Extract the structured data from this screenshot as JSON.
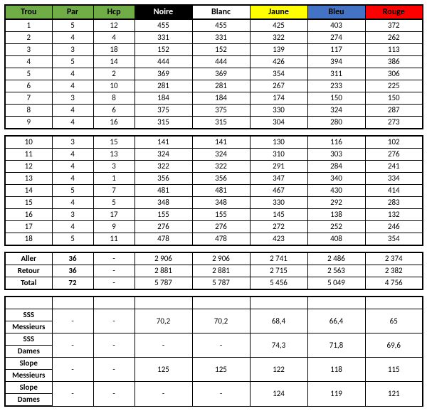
{
  "headers": {
    "trou": {
      "label": "Trou",
      "bg": "#70ad47",
      "fg": "#000000"
    },
    "par": {
      "label": "Par",
      "bg": "#70ad47",
      "fg": "#000000"
    },
    "hcp": {
      "label": "Hcp",
      "bg": "#70ad47",
      "fg": "#000000"
    },
    "noire": {
      "label": "Noire",
      "bg": "#000000",
      "fg": "#ffffff"
    },
    "blanc": {
      "label": "Blanc",
      "bg": "#ffffff",
      "fg": "#000000"
    },
    "jaune": {
      "label": "Jaune",
      "bg": "#ffff00",
      "fg": "#000000"
    },
    "bleu": {
      "label": "Bleu",
      "bg": "#4472c4",
      "fg": "#000000"
    },
    "rouge": {
      "label": "Rouge",
      "bg": "#ff0000",
      "fg": "#000000"
    }
  },
  "front9": [
    {
      "trou": "1",
      "par": "5",
      "hcp": "12",
      "noire": "455",
      "blanc": "455",
      "jaune": "425",
      "bleu": "403",
      "rouge": "372"
    },
    {
      "trou": "2",
      "par": "4",
      "hcp": "4",
      "noire": "331",
      "blanc": "331",
      "jaune": "322",
      "bleu": "274",
      "rouge": "262"
    },
    {
      "trou": "3",
      "par": "3",
      "hcp": "18",
      "noire": "152",
      "blanc": "152",
      "jaune": "139",
      "bleu": "117",
      "rouge": "113"
    },
    {
      "trou": "4",
      "par": "5",
      "hcp": "14",
      "noire": "444",
      "blanc": "444",
      "jaune": "426",
      "bleu": "394",
      "rouge": "386"
    },
    {
      "trou": "5",
      "par": "4",
      "hcp": "2",
      "noire": "369",
      "blanc": "369",
      "jaune": "354",
      "bleu": "311",
      "rouge": "306"
    },
    {
      "trou": "6",
      "par": "4",
      "hcp": "10",
      "noire": "281",
      "blanc": "281",
      "jaune": "267",
      "bleu": "233",
      "rouge": "225"
    },
    {
      "trou": "7",
      "par": "3",
      "hcp": "8",
      "noire": "184",
      "blanc": "184",
      "jaune": "174",
      "bleu": "150",
      "rouge": "150"
    },
    {
      "trou": "8",
      "par": "4",
      "hcp": "6",
      "noire": "375",
      "blanc": "375",
      "jaune": "330",
      "bleu": "324",
      "rouge": "287"
    },
    {
      "trou": "9",
      "par": "4",
      "hcp": "16",
      "noire": "315",
      "blanc": "315",
      "jaune": "304",
      "bleu": "280",
      "rouge": "273"
    }
  ],
  "back9": [
    {
      "trou": "10",
      "par": "3",
      "hcp": "15",
      "noire": "141",
      "blanc": "141",
      "jaune": "130",
      "bleu": "116",
      "rouge": "102"
    },
    {
      "trou": "11",
      "par": "4",
      "hcp": "13",
      "noire": "324",
      "blanc": "324",
      "jaune": "310",
      "bleu": "303",
      "rouge": "276"
    },
    {
      "trou": "12",
      "par": "4",
      "hcp": "3",
      "noire": "322",
      "blanc": "322",
      "jaune": "291",
      "bleu": "284",
      "rouge": "241"
    },
    {
      "trou": "13",
      "par": "4",
      "hcp": "1",
      "noire": "356",
      "blanc": "356",
      "jaune": "347",
      "bleu": "340",
      "rouge": "334"
    },
    {
      "trou": "14",
      "par": "5",
      "hcp": "7",
      "noire": "481",
      "blanc": "481",
      "jaune": "467",
      "bleu": "430",
      "rouge": "414"
    },
    {
      "trou": "15",
      "par": "4",
      "hcp": "5",
      "noire": "348",
      "blanc": "348",
      "jaune": "330",
      "bleu": "292",
      "rouge": "283"
    },
    {
      "trou": "16",
      "par": "3",
      "hcp": "17",
      "noire": "155",
      "blanc": "155",
      "jaune": "145",
      "bleu": "138",
      "rouge": "132"
    },
    {
      "trou": "17",
      "par": "4",
      "hcp": "9",
      "noire": "276",
      "blanc": "276",
      "jaune": "272",
      "bleu": "252",
      "rouge": "246"
    },
    {
      "trou": "18",
      "par": "5",
      "hcp": "11",
      "noire": "478",
      "blanc": "478",
      "jaune": "423",
      "bleu": "408",
      "rouge": "354"
    }
  ],
  "totals": [
    {
      "label": "Aller",
      "par": "36",
      "hcp": "-",
      "noire": "2 906",
      "blanc": "2 906",
      "jaune": "2 741",
      "bleu": "2 486",
      "rouge": "2 374"
    },
    {
      "label": "Retour",
      "par": "36",
      "hcp": "-",
      "noire": "2 881",
      "blanc": "2 881",
      "jaune": "2 715",
      "bleu": "2 563",
      "rouge": "2 382"
    },
    {
      "label": "Total",
      "par": "72",
      "hcp": "-",
      "noire": "5 787",
      "blanc": "5 787",
      "jaune": "5 456",
      "bleu": "5 049",
      "rouge": "4 756"
    }
  ],
  "ratings": [
    {
      "l1": "SSS",
      "l2": "Messieurs",
      "par": "-",
      "hcp": "-",
      "noire": "70,2",
      "blanc": "70,2",
      "jaune": "68,4",
      "bleu": "66,4",
      "rouge": "65"
    },
    {
      "l1": "SSS",
      "l2": "Dames",
      "par": "-",
      "hcp": "-",
      "noire": "-",
      "blanc": "-",
      "jaune": "74,3",
      "bleu": "71,8",
      "rouge": "69,6"
    },
    {
      "l1": "Slope",
      "l2": "Messieurs",
      "par": "-",
      "hcp": "-",
      "noire": "125",
      "blanc": "125",
      "jaune": "122",
      "bleu": "118",
      "rouge": "115"
    },
    {
      "l1": "Slope",
      "l2": "Dames",
      "par": "-",
      "hcp": "-",
      "noire": "-",
      "blanc": "-",
      "jaune": "124",
      "bleu": "119",
      "rouge": "121"
    }
  ]
}
